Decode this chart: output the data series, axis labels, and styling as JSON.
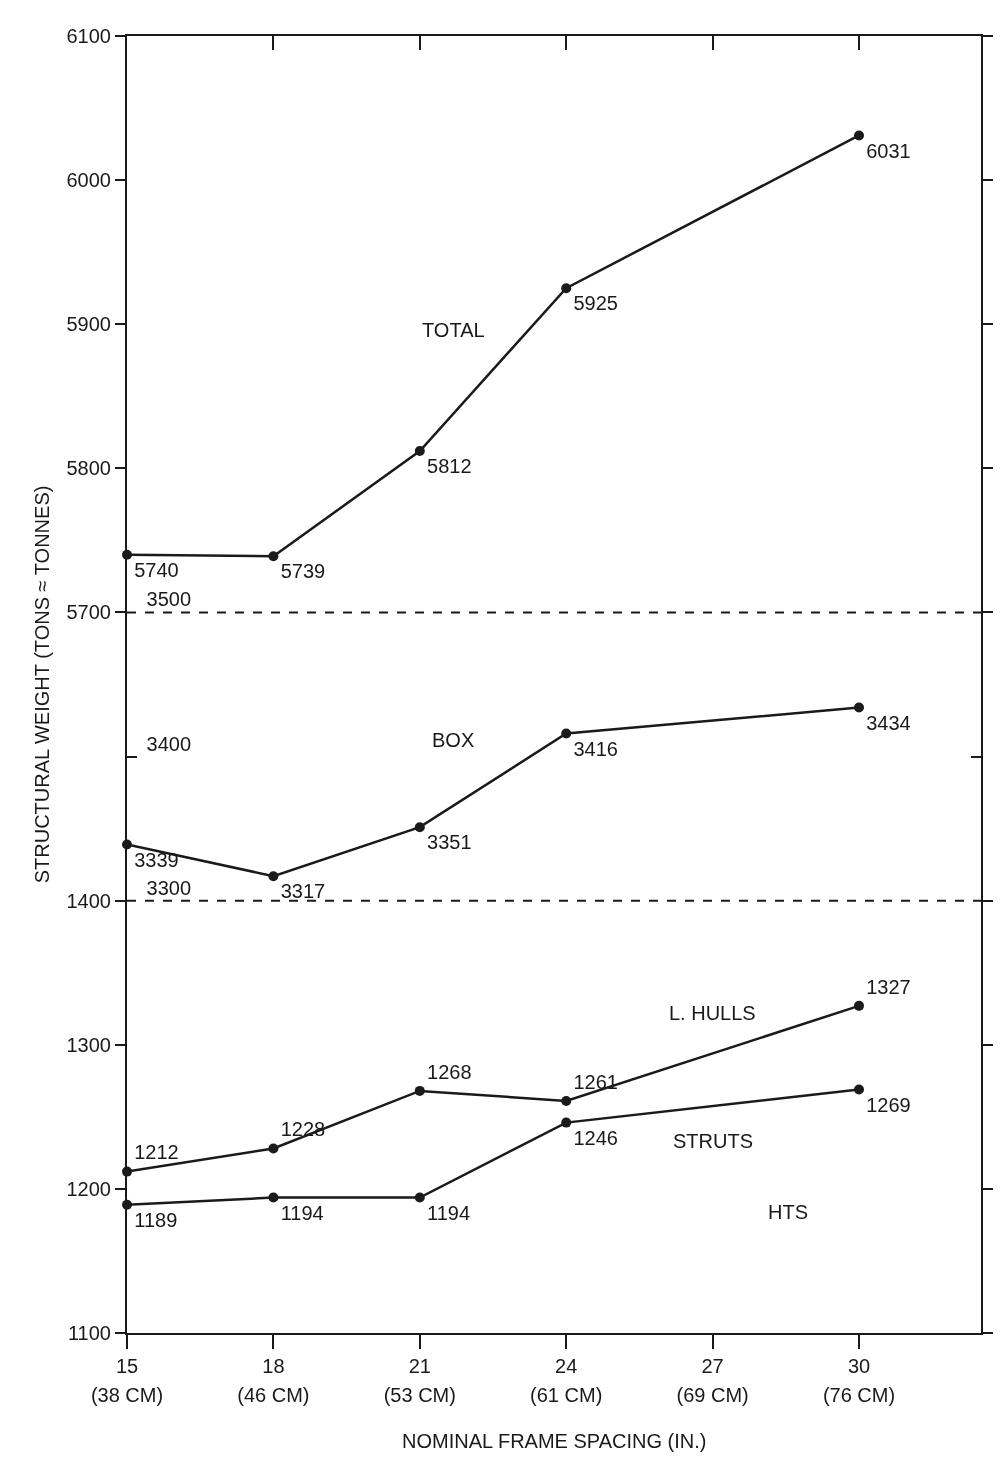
{
  "chart_data": [
    {
      "type": "line",
      "ylabel": "STRUCTURAL WEIGHT (TONS ≈ TONNES)",
      "x": [
        15,
        18,
        21,
        24,
        30
      ],
      "series": [
        {
          "name": "TOTAL",
          "color": "#1a1a1a",
          "values": [
            5740,
            5739,
            5812,
            5925,
            6031
          ]
        }
      ],
      "xlim": [
        15,
        32.5
      ],
      "ylim": [
        5700,
        6100
      ],
      "yticks": [
        5700,
        5800,
        5900,
        6000,
        6100
      ],
      "tick_labels": "y",
      "legend": false,
      "marker": "circle",
      "line_style": "solid",
      "data_labels": true
    },
    {
      "type": "line",
      "x": [
        15,
        18,
        21,
        24,
        30
      ],
      "series": [
        {
          "name": "BOX",
          "color": "#1a1a1a",
          "values": [
            3339,
            3317,
            3351,
            3416,
            3434
          ]
        }
      ],
      "xlim": [
        15,
        32.5
      ],
      "ylim": [
        3300,
        3500
      ],
      "yticks": [
        3300,
        3400,
        3500
      ],
      "tick_labels": "y",
      "legend": false,
      "marker": "circle",
      "line_style": "solid",
      "data_labels": true
    },
    {
      "type": "line",
      "xlabel": "NOMINAL FRAME SPACING (IN.)",
      "x": [
        15,
        18,
        21,
        24,
        30
      ],
      "series": [
        {
          "name": "L. HULLS",
          "color": "#1a1a1a",
          "values": [
            1212,
            1228,
            1268,
            1261,
            1327
          ]
        },
        {
          "name": "STRUTS",
          "color": "#1a1a1a",
          "values": [
            1189,
            1194,
            1194,
            1246,
            1269
          ]
        }
      ],
      "annotations": [
        "HTS"
      ],
      "xlim": [
        15,
        32.5
      ],
      "xticks": [
        15,
        18,
        21,
        24,
        27,
        30
      ],
      "x2lim": [
        38.1,
        82.55
      ],
      "x2ticks": [
        {
          "value": 38.1,
          "label": "(38 CM)"
        },
        {
          "value": 45.72,
          "label": "(46 CM)"
        },
        {
          "value": 53.34,
          "label": "(53 CM)"
        },
        {
          "value": 60.96,
          "label": "(61 CM)"
        },
        {
          "value": 68.58,
          "label": "(69 CM)"
        },
        {
          "value": 76.2,
          "label": "(76 CM)"
        }
      ],
      "ylim": [
        1100,
        1400
      ],
      "yticks": [
        1100,
        1200,
        1300,
        1400
      ],
      "legend": false,
      "marker": "circle",
      "line_style": "solid",
      "data_labels": true
    }
  ]
}
